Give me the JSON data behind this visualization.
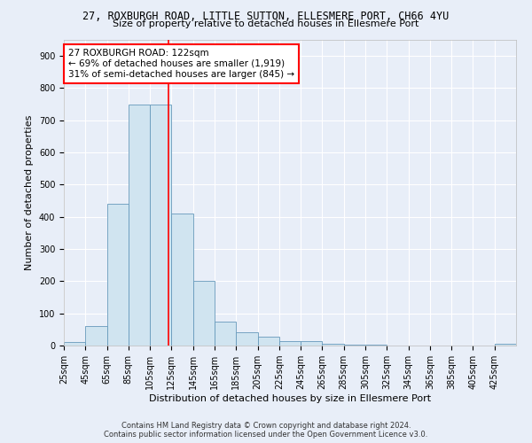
{
  "title": "27, ROXBURGH ROAD, LITTLE SUTTON, ELLESMERE PORT, CH66 4YU",
  "subtitle": "Size of property relative to detached houses in Ellesmere Port",
  "xlabel": "Distribution of detached houses by size in Ellesmere Port",
  "ylabel": "Number of detached properties",
  "bin_labels": [
    "25sqm",
    "45sqm",
    "65sqm",
    "85sqm",
    "105sqm",
    "125sqm",
    "145sqm",
    "165sqm",
    "185sqm",
    "205sqm",
    "225sqm",
    "245sqm",
    "265sqm",
    "285sqm",
    "305sqm",
    "325sqm",
    "345sqm",
    "365sqm",
    "385sqm",
    "405sqm",
    "425sqm"
  ],
  "bar_heights": [
    10,
    60,
    440,
    750,
    750,
    410,
    200,
    75,
    42,
    28,
    13,
    13,
    5,
    2,
    2,
    1,
    1,
    1,
    1,
    1,
    5
  ],
  "bar_color": "#d0e4f0",
  "bar_edge_color": "#6699bb",
  "red_line_x": 122,
  "annotation_text": "27 ROXBURGH ROAD: 122sqm\n← 69% of detached houses are smaller (1,919)\n31% of semi-detached houses are larger (845) →",
  "annotation_box_color": "white",
  "annotation_box_edge": "red",
  "ylim": [
    0,
    950
  ],
  "yticks": [
    0,
    100,
    200,
    300,
    400,
    500,
    600,
    700,
    800,
    900
  ],
  "footer": "Contains HM Land Registry data © Crown copyright and database right 2024.\nContains public sector information licensed under the Open Government Licence v3.0.",
  "background_color": "#e8eef8",
  "grid_color": "#ffffff",
  "title_fontsize": 8.5,
  "subtitle_fontsize": 8,
  "axis_label_fontsize": 8,
  "tick_fontsize": 7,
  "annotation_fontsize": 7.5,
  "footer_fontsize": 6
}
